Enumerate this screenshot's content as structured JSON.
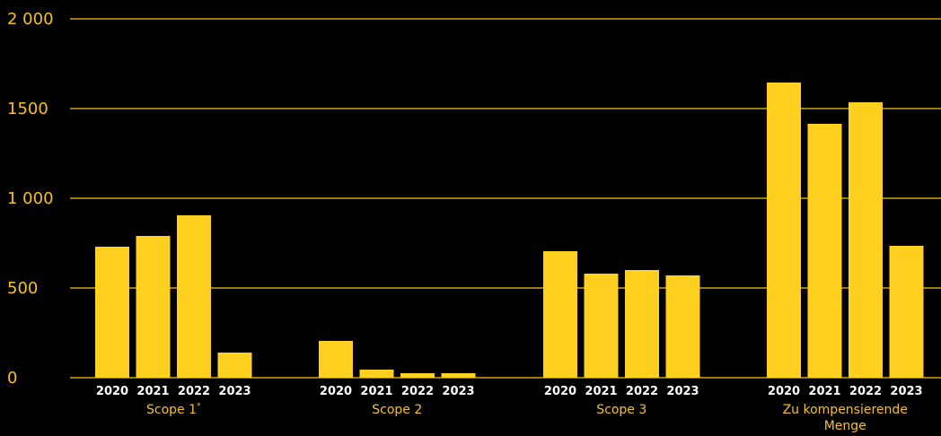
{
  "colors": {
    "background": "#000000",
    "bar": "#ffd020",
    "grid": "#f6c21c",
    "text_accent": "#f6c21c",
    "text_year": "#ffffff"
  },
  "chart_data": {
    "type": "bar",
    "title": "",
    "xlabel": "",
    "ylabel": "",
    "ylim": [
      0,
      2000
    ],
    "yticks": [
      0,
      500,
      1000,
      1500,
      2000
    ],
    "ytick_labels": [
      "0",
      "500",
      "1 000",
      "1500",
      "2 000"
    ],
    "grid": true,
    "legend": "none",
    "years": [
      "2020",
      "2021",
      "2022",
      "2023"
    ],
    "groups": [
      {
        "name": "Scope 1",
        "marker": "*",
        "values": [
          730,
          790,
          905,
          140
        ]
      },
      {
        "name": "Scope 2",
        "values": [
          205,
          45,
          25,
          25
        ]
      },
      {
        "name": "Scope 3",
        "values": [
          705,
          580,
          600,
          570
        ]
      },
      {
        "name": "Zu kompensierende",
        "name_line2": "Menge",
        "values": [
          1645,
          1415,
          1535,
          735
        ]
      }
    ]
  }
}
